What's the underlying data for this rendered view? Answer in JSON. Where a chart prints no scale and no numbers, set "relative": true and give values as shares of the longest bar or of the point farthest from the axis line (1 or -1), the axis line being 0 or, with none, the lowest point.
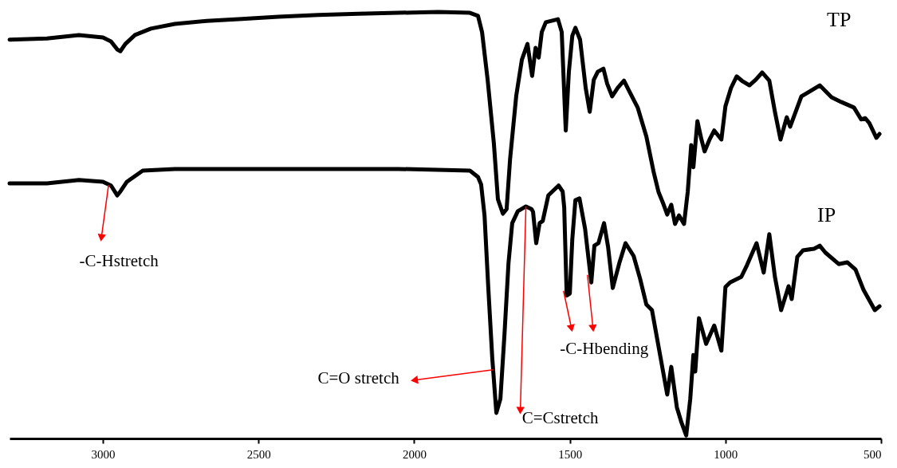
{
  "chart_data": {
    "type": "line",
    "relative": true,
    "xlim": [
      3300,
      500
    ],
    "xticks": [
      3000,
      2500,
      2000,
      1500,
      1000,
      500
    ],
    "grid": false,
    "marker": "none",
    "line_style": "solid",
    "annotations": [
      {
        "text": "-C-Hstretch",
        "x": 2982,
        "y": 0.594
      },
      {
        "text": "C=O stretch",
        "x": 1746,
        "y": 0.161
      },
      {
        "text": "C=Cstretch",
        "x": 1641,
        "y": 0.544
      },
      {
        "text": "-C-Hbending",
        "x": 1510,
        "y": 0.335
      }
    ],
    "series": [
      {
        "name": "TP",
        "color": "#000000",
        "x": [
          3300,
          3180,
          3077,
          3000,
          2974,
          2954,
          2944,
          2928,
          2897,
          2846,
          2769,
          2667,
          2564,
          2436,
          2308,
          2179,
          2051,
          1923,
          1821,
          1795,
          1782,
          1764,
          1744,
          1731,
          1715,
          1703,
          1692,
          1672,
          1654,
          1636,
          1621,
          1610,
          1600,
          1590,
          1577,
          1538,
          1526,
          1513,
          1503,
          1492,
          1482,
          1467,
          1449,
          1436,
          1423,
          1410,
          1392,
          1380,
          1364,
          1346,
          1326,
          1308,
          1282,
          1254,
          1231,
          1215,
          1200,
          1187,
          1174,
          1162,
          1149,
          1133,
          1121,
          1110,
          1103,
          1090,
          1077,
          1067,
          1051,
          1036,
          1013,
          1000,
          982,
          964,
          944,
          923,
          903,
          882,
          859,
          841,
          823,
          803,
          792,
          756,
          731,
          697,
          659,
          628,
          587,
          564,
          551,
          538,
          515,
          505
        ],
        "values": [
          0.935,
          0.938,
          0.946,
          0.94,
          0.931,
          0.912,
          0.908,
          0.925,
          0.946,
          0.961,
          0.972,
          0.979,
          0.983,
          0.989,
          0.993,
          0.996,
          0.998,
          1.0,
          0.998,
          0.991,
          0.953,
          0.841,
          0.692,
          0.561,
          0.527,
          0.538,
          0.654,
          0.804,
          0.888,
          0.925,
          0.85,
          0.916,
          0.893,
          0.953,
          0.976,
          0.983,
          0.953,
          0.722,
          0.86,
          0.944,
          0.963,
          0.935,
          0.822,
          0.766,
          0.841,
          0.86,
          0.867,
          0.832,
          0.802,
          0.822,
          0.839,
          0.813,
          0.776,
          0.708,
          0.626,
          0.578,
          0.551,
          0.525,
          0.548,
          0.503,
          0.523,
          0.503,
          0.579,
          0.688,
          0.636,
          0.744,
          0.701,
          0.673,
          0.701,
          0.722,
          0.701,
          0.779,
          0.822,
          0.849,
          0.837,
          0.828,
          0.841,
          0.858,
          0.839,
          0.766,
          0.701,
          0.753,
          0.731,
          0.802,
          0.813,
          0.828,
          0.8,
          0.789,
          0.776,
          0.748,
          0.751,
          0.74,
          0.705,
          0.714
        ]
      },
      {
        "name": "IP",
        "color": "#000000",
        "x": [
          3300,
          3180,
          3077,
          3000,
          2974,
          2954,
          2944,
          2923,
          2872,
          2769,
          2564,
          2308,
          2051,
          1821,
          1795,
          1785,
          1774,
          1762,
          1749,
          1736,
          1723,
          1710,
          1697,
          1685,
          1667,
          1641,
          1623,
          1618,
          1608,
          1597,
          1587,
          1569,
          1536,
          1523,
          1518,
          1510,
          1500,
          1492,
          1482,
          1469,
          1451,
          1431,
          1421,
          1408,
          1390,
          1377,
          1362,
          1341,
          1321,
          1295,
          1274,
          1254,
          1236,
          1210,
          1187,
          1174,
          1156,
          1141,
          1126,
          1113,
          1103,
          1097,
          1085,
          1062,
          1036,
          1013,
          1000,
          985,
          949,
          931,
          900,
          877,
          859,
          841,
          821,
          797,
          787,
          769,
          751,
          715,
          697,
          679,
          636,
          608,
          582,
          556,
          520,
          505
        ],
        "values": [
          0.598,
          0.598,
          0.606,
          0.602,
          0.593,
          0.57,
          0.579,
          0.602,
          0.628,
          0.632,
          0.632,
          0.632,
          0.632,
          0.628,
          0.613,
          0.596,
          0.523,
          0.355,
          0.187,
          0.06,
          0.093,
          0.243,
          0.411,
          0.505,
          0.533,
          0.544,
          0.538,
          0.531,
          0.458,
          0.505,
          0.51,
          0.57,
          0.593,
          0.579,
          0.542,
          0.335,
          0.34,
          0.467,
          0.559,
          0.563,
          0.492,
          0.366,
          0.452,
          0.458,
          0.505,
          0.449,
          0.353,
          0.411,
          0.458,
          0.428,
          0.374,
          0.314,
          0.301,
          0.196,
          0.103,
          0.168,
          0.073,
          0.037,
          0.007,
          0.093,
          0.196,
          0.157,
          0.282,
          0.222,
          0.265,
          0.206,
          0.355,
          0.366,
          0.379,
          0.406,
          0.458,
          0.389,
          0.479,
          0.379,
          0.301,
          0.357,
          0.327,
          0.426,
          0.441,
          0.445,
          0.452,
          0.436,
          0.409,
          0.413,
          0.396,
          0.348,
          0.301,
          0.31
        ]
      }
    ]
  }
}
